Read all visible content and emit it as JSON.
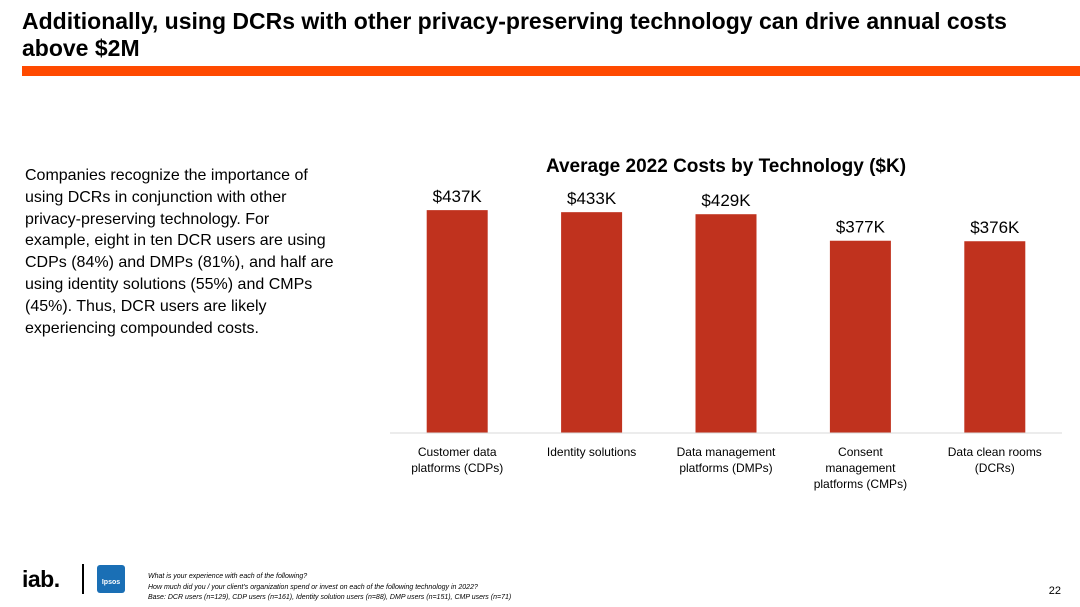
{
  "slide": {
    "title": "Additionally, using DCRs with other privacy-preserving technology can drive annual costs above $2M",
    "accent_color": "#ff4a00",
    "body_text": "Companies recognize the importance of using DCRs in conjunction with other privacy-preserving technology. For example, eight in ten DCR users are using CDPs (84%) and DMPs (81%), and half are using identity solutions (55%) and CMPs (45%). Thus, DCR users are likely experiencing compounded costs."
  },
  "chart_data": {
    "type": "bar",
    "title": "Average 2022 Costs by Technology ($K)",
    "categories": [
      [
        "Customer data",
        "platforms (CDPs)"
      ],
      [
        "Identity solutions"
      ],
      [
        "Data management",
        "platforms (DMPs)"
      ],
      [
        "Consent",
        "management",
        "platforms (CMPs)"
      ],
      [
        "Data clean rooms",
        "(DCRs)"
      ]
    ],
    "values": [
      437,
      433,
      429,
      377,
      376
    ],
    "value_labels": [
      "$437K",
      "$433K",
      "$429K",
      "$377K",
      "$376K"
    ],
    "bar_color": "#c0321e",
    "ylim": [
      0,
      500
    ],
    "grid": false,
    "legend": "none"
  },
  "footer": {
    "logo_iab": "iab.",
    "logo_ipsos": "Ipsos",
    "notes": [
      "What is your experience with each of the following?",
      "How much did you / your client’s organization spend or invest on each of the following technology in 2022?",
      "Base: DCR users (n=129), CDP users (n=161), Identity solution users (n=88), DMP users (n=151), CMP users (n=71)"
    ],
    "page_number": "22"
  }
}
